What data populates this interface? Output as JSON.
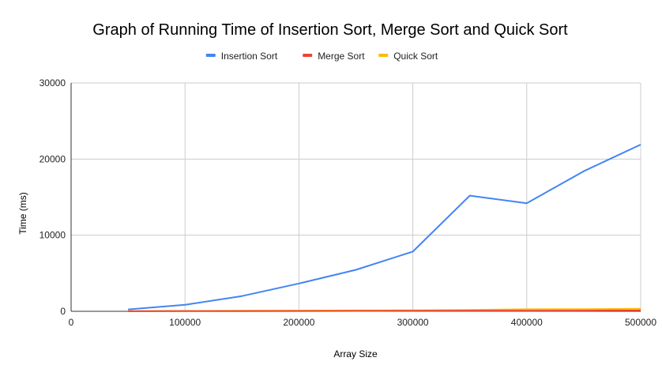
{
  "chart_data": {
    "type": "line",
    "title": "Graph of Running Time of Insertion Sort, Merge Sort and Quick Sort",
    "xlabel": "Array Size",
    "ylabel": "Time (ms)",
    "xlim": [
      0,
      500000
    ],
    "ylim": [
      0,
      30000
    ],
    "x_ticks": [
      "0",
      "100000",
      "200000",
      "300000",
      "400000",
      "500000"
    ],
    "y_ticks": [
      "0",
      "10000",
      "20000",
      "30000"
    ],
    "grid": true,
    "legend_position": "top",
    "x": [
      50000,
      100000,
      150000,
      200000,
      250000,
      300000,
      350000,
      400000,
      450000,
      500000
    ],
    "series": [
      {
        "name": "Insertion Sort",
        "color": "#4285f4",
        "values": [
          250,
          850,
          2000,
          3650,
          5450,
          7850,
          15200,
          14200,
          18400,
          21900
        ]
      },
      {
        "name": "Merge Sort",
        "color": "#ea4335",
        "values": [
          10,
          20,
          30,
          40,
          50,
          60,
          70,
          80,
          90,
          110
        ]
      },
      {
        "name": "Quick Sort",
        "color": "#fbbc04",
        "values": [
          20,
          50,
          70,
          90,
          110,
          140,
          180,
          270,
          280,
          330
        ]
      }
    ]
  }
}
